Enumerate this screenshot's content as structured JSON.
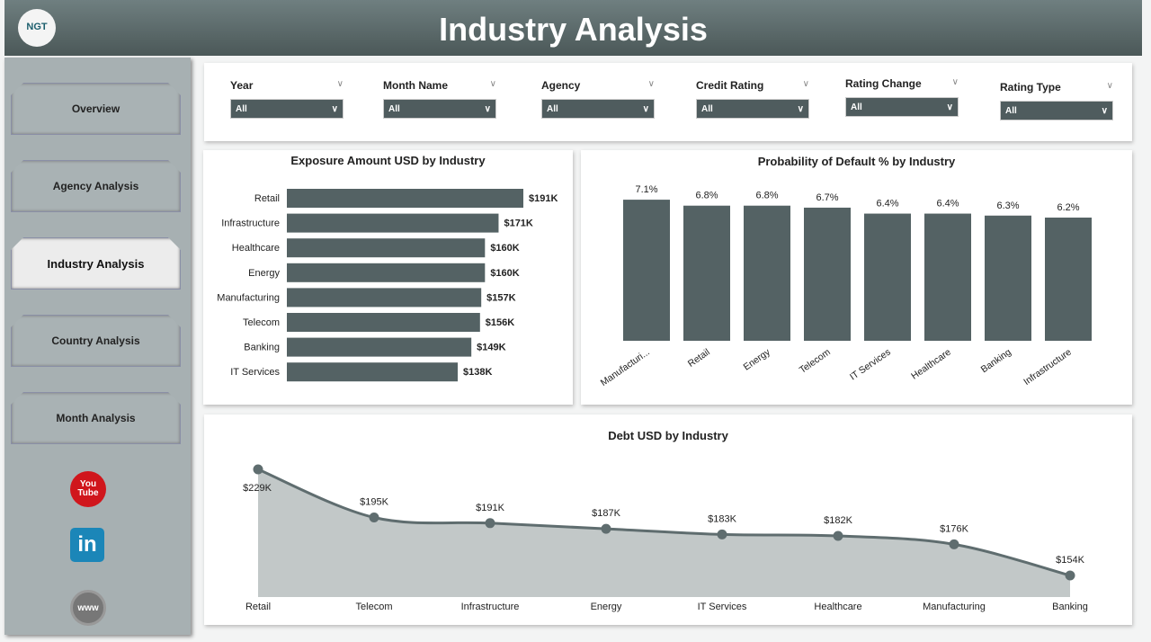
{
  "header": {
    "title": "Industry Analysis",
    "logo": "NGT"
  },
  "sidebar": {
    "items": [
      {
        "label": "Overview"
      },
      {
        "label": "Agency Analysis"
      },
      {
        "label": "Industry Analysis",
        "active": true
      },
      {
        "label": "Country Analysis"
      },
      {
        "label": "Month Analysis"
      }
    ],
    "social": [
      {
        "icon": "youtube-icon",
        "label": "You Tube"
      },
      {
        "icon": "linkedin-icon",
        "label": "in"
      },
      {
        "icon": "globe-icon",
        "label": "www"
      }
    ]
  },
  "filters": [
    {
      "label": "Year",
      "value": "All"
    },
    {
      "label": "Month Name",
      "value": "All"
    },
    {
      "label": "Agency",
      "value": "All"
    },
    {
      "label": "Credit Rating",
      "value": "All"
    },
    {
      "label": "Rating Change",
      "value": "All"
    },
    {
      "label": "Rating Type",
      "value": "All"
    }
  ],
  "colors": {
    "bar": "#546264",
    "header": "#5c6b6b",
    "sidebar": "#a7b0b2",
    "area": "#c2c8c8"
  },
  "chart_data": [
    {
      "type": "bar",
      "orientation": "horizontal",
      "title": "Exposure Amount USD by Industry",
      "categories": [
        "Retail",
        "Infrastructure",
        "Healthcare",
        "Energy",
        "Manufacturing",
        "Telecom",
        "Banking",
        "IT Services"
      ],
      "values": [
        191,
        171,
        160,
        160,
        157,
        156,
        149,
        138
      ],
      "labels": [
        "$191K",
        "$171K",
        "$160K",
        "$160K",
        "$157K",
        "$156K",
        "$149K",
        "$138K"
      ]
    },
    {
      "type": "bar",
      "title": "Probability of Default % by Industry",
      "categories": [
        "Manufacturi...",
        "Retail",
        "Energy",
        "Telecom",
        "IT Services",
        "Healthcare",
        "Banking",
        "Infrastructure"
      ],
      "values": [
        7.1,
        6.8,
        6.8,
        6.7,
        6.4,
        6.4,
        6.3,
        6.2
      ],
      "labels": [
        "7.1%",
        "6.8%",
        "6.8%",
        "6.7%",
        "6.4%",
        "6.4%",
        "6.3%",
        "6.2%"
      ]
    },
    {
      "type": "area",
      "title": "Debt USD by Industry",
      "categories": [
        "Retail",
        "Telecom",
        "Infrastructure",
        "Energy",
        "IT Services",
        "Healthcare",
        "Manufacturing",
        "Banking"
      ],
      "values": [
        229,
        195,
        191,
        187,
        183,
        182,
        176,
        154
      ],
      "labels": [
        "$229K",
        "$195K",
        "$191K",
        "$187K",
        "$183K",
        "$182K",
        "$176K",
        "$154K"
      ]
    }
  ]
}
